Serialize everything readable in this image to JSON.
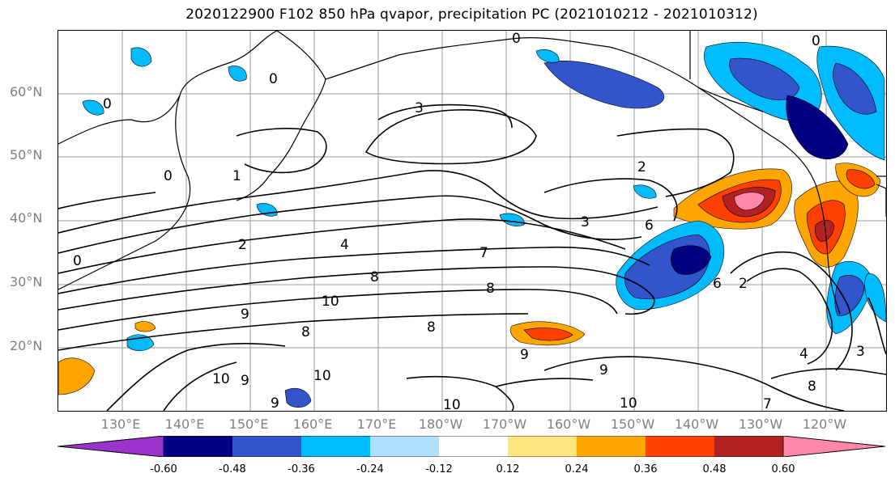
{
  "title": "2020122900 F102 850 hPa qvapor, precipitation PC (2021010212 - 2021010312)",
  "lat_labels": [
    "60°N",
    "50°N",
    "40°N",
    "30°N",
    "20°N"
  ],
  "lon_labels": [
    "130°E",
    "140°E",
    "150°E",
    "160°E",
    "170°E",
    "180°W",
    "170°W",
    "160°W",
    "150°W",
    "140°W",
    "130°W",
    "120°W"
  ],
  "contour_labels": [
    "0",
    "0",
    "0",
    "0",
    "0",
    "0",
    "1",
    "2",
    "2",
    "2",
    "3",
    "3",
    "3",
    "4",
    "4",
    "6",
    "6",
    "7",
    "7",
    "8",
    "8",
    "8",
    "8",
    "8",
    "9",
    "9",
    "9",
    "9",
    "9",
    "10",
    "10",
    "10",
    "10",
    "10"
  ],
  "colorbar": {
    "ticks": [
      "-0.60",
      "-0.48",
      "-0.36",
      "-0.24",
      "-0.12",
      "0.12",
      "0.24",
      "0.36",
      "0.48",
      "0.60"
    ],
    "colors": [
      "#9933cc",
      "#000080",
      "#3355cc",
      "#00bbff",
      "#b0e0ff",
      "#ffffff",
      "#ffe680",
      "#ffa500",
      "#ff4000",
      "#b22222",
      "#ff88aa",
      "#ffffff"
    ]
  },
  "precip_colors": {
    "deep_blue": "#000080",
    "blue": "#3355cc",
    "cyan": "#00bbff",
    "light_blue": "#b0e0ff",
    "yellow": "#ffe680",
    "orange": "#ffa500",
    "red_orange": "#ff4000",
    "dark_red": "#b22222",
    "pink": "#ff88aa"
  }
}
